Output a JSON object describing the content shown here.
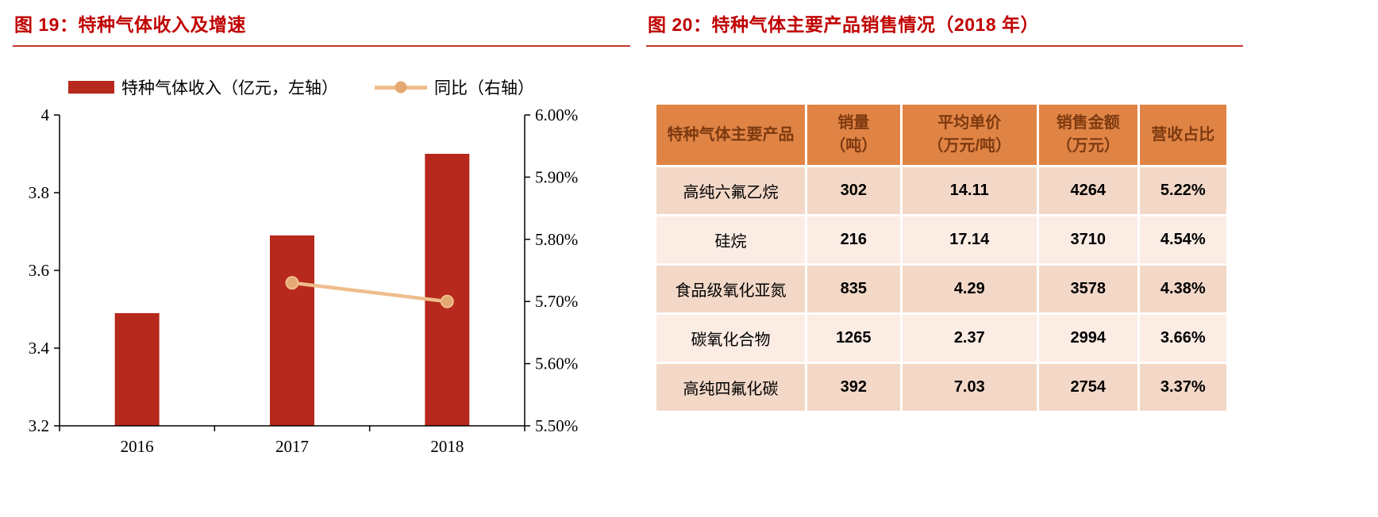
{
  "colors": {
    "title_red": "#c00000",
    "title_rule": "#bf3a2b",
    "bar_color": "#b7281d",
    "line_color": "#eebd8c",
    "line_marker": "#e5a873",
    "axis_color": "#000000",
    "table_header_bg": "#e08445",
    "table_header_text": "#7e3a10",
    "row_dark": "#f3d8c8",
    "row_light": "#fbece4"
  },
  "left_panel": {
    "title": "图 19：特种气体收入及增速",
    "legend_bar_label": "特种气体收入（亿元，左轴）",
    "legend_line_label": "同比（右轴）"
  },
  "chart_data": {
    "type": "bar+line",
    "title": "特种气体收入及增速",
    "categories": [
      "2016",
      "2017",
      "2018"
    ],
    "series": [
      {
        "name": "特种气体收入（亿元，左轴）",
        "type": "bar",
        "axis": "left",
        "values": [
          3.49,
          3.69,
          3.9
        ]
      },
      {
        "name": "同比（右轴）",
        "type": "line",
        "axis": "right",
        "values": [
          null,
          5.73,
          5.7
        ]
      }
    ],
    "left_axis": {
      "min": 3.2,
      "max": 4.0,
      "ticks": [
        3.2,
        3.4,
        3.6,
        3.8,
        4
      ],
      "tick_labels": [
        "3.2",
        "3.4",
        "3.6",
        "3.8",
        "4"
      ]
    },
    "right_axis": {
      "min": 5.5,
      "max": 6.0,
      "tick_labels": [
        "5.50%",
        "5.60%",
        "5.70%",
        "5.80%",
        "5.90%",
        "6.00%"
      ]
    },
    "grid": false,
    "legend_position": "top"
  },
  "right_panel": {
    "title": "图 20：特种气体主要产品销售情况（2018 年）",
    "table": {
      "headers": [
        "特种气体主要产品",
        "销量\n（吨）",
        "平均单价\n（万元/吨）",
        "销售金额\n（万元）",
        "营收占比"
      ],
      "col_widths": [
        "26.5%",
        "16.5%",
        "24%",
        "17.5%",
        "15.5%"
      ],
      "rows": [
        [
          "高纯六氟乙烷",
          "302",
          "14.11",
          "4264",
          "5.22%"
        ],
        [
          "硅烷",
          "216",
          "17.14",
          "3710",
          "4.54%"
        ],
        [
          "食品级氧化亚氮",
          "835",
          "4.29",
          "3578",
          "4.38%"
        ],
        [
          "碳氧化合物",
          "1265",
          "2.37",
          "2994",
          "3.66%"
        ],
        [
          "高纯四氟化碳",
          "392",
          "7.03",
          "2754",
          "3.37%"
        ]
      ]
    }
  }
}
